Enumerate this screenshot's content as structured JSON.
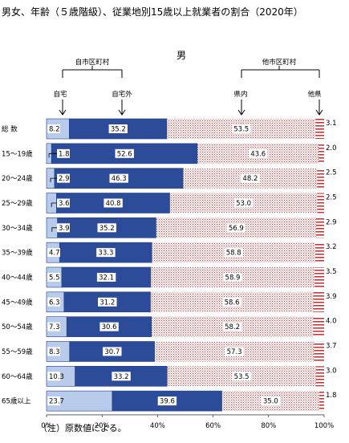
{
  "title": "男女、年齢（５歳階級）、従業地別15歳以上就業者の割合（2020年）",
  "subtitle": "男",
  "note": "（注）原数値による。",
  "colors": {
    "home": "#b8cbea",
    "home_stroke": "#1f3f8f",
    "outside": "#2c4c9a",
    "other_city": "#ffffff",
    "other_city_hatch": "#c0393d",
    "other_pref": "#ffffff",
    "other_pref_hatch": "#c0393d"
  },
  "chart_data": {
    "type": "bar",
    "orientation": "horizontal",
    "stacked": true,
    "categories": [
      "総 数",
      "15～19歳",
      "20～24歳",
      "25～29歳",
      "30～34歳",
      "35～39歳",
      "40～44歳",
      "45～49歳",
      "50～54歳",
      "55～59歳",
      "60～64歳",
      "65歳以上"
    ],
    "series": [
      {
        "name": "自宅",
        "values": [
          8.2,
          1.8,
          2.9,
          3.6,
          3.9,
          4.7,
          5.5,
          6.3,
          7.3,
          8.3,
          10.3,
          23.7
        ]
      },
      {
        "name": "自宅外",
        "values": [
          35.2,
          52.6,
          46.3,
          40.8,
          35.2,
          33.3,
          32.1,
          31.2,
          30.6,
          30.7,
          33.2,
          39.6
        ]
      },
      {
        "name": "県内",
        "values": [
          53.5,
          43.6,
          48.2,
          53.0,
          56.9,
          58.8,
          58.9,
          58.6,
          58.2,
          57.3,
          53.5,
          35.0
        ]
      },
      {
        "name": "他県",
        "values": [
          3.1,
          2.0,
          2.5,
          2.5,
          2.9,
          3.2,
          3.5,
          3.9,
          4.0,
          3.7,
          3.0,
          1.8
        ]
      }
    ],
    "groups": [
      "自市区町村",
      "他市区町村"
    ],
    "xticks": [
      "0%",
      "20%",
      "40%",
      "60%",
      "80%",
      "100%"
    ],
    "xlim": [
      0,
      100
    ],
    "grid": false
  }
}
